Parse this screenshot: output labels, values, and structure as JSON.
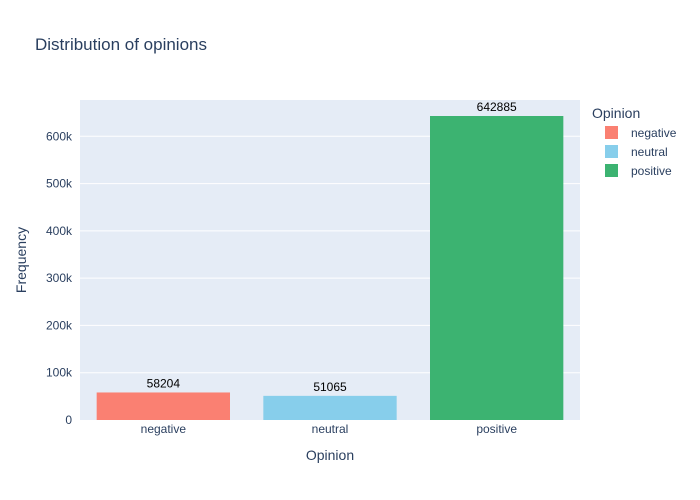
{
  "chart_data": {
    "type": "bar",
    "title": "Distribution of opinions",
    "xlabel": "Opinion",
    "ylabel": "Frequency",
    "categories": [
      "negative",
      "neutral",
      "positive"
    ],
    "values": [
      58204,
      51065,
      642885
    ],
    "data_labels": [
      "58204",
      "51065",
      "642885"
    ],
    "colors": [
      "#fa8072",
      "#87ceeb",
      "#3cb371"
    ],
    "ylim": [
      0,
      676721
    ],
    "yticks": [
      0,
      100000,
      200000,
      300000,
      400000,
      500000,
      600000
    ],
    "ytick_labels": [
      "0",
      "100k",
      "200k",
      "300k",
      "400k",
      "500k",
      "600k"
    ],
    "grid": true,
    "legend": {
      "title": "Opinion",
      "placement": "right",
      "entries": [
        "negative",
        "neutral",
        "positive"
      ]
    }
  },
  "style": {
    "plot_bg": "#e5ecf6",
    "grid_color": "#ffffff",
    "text_color": "#2a3f5f"
  }
}
